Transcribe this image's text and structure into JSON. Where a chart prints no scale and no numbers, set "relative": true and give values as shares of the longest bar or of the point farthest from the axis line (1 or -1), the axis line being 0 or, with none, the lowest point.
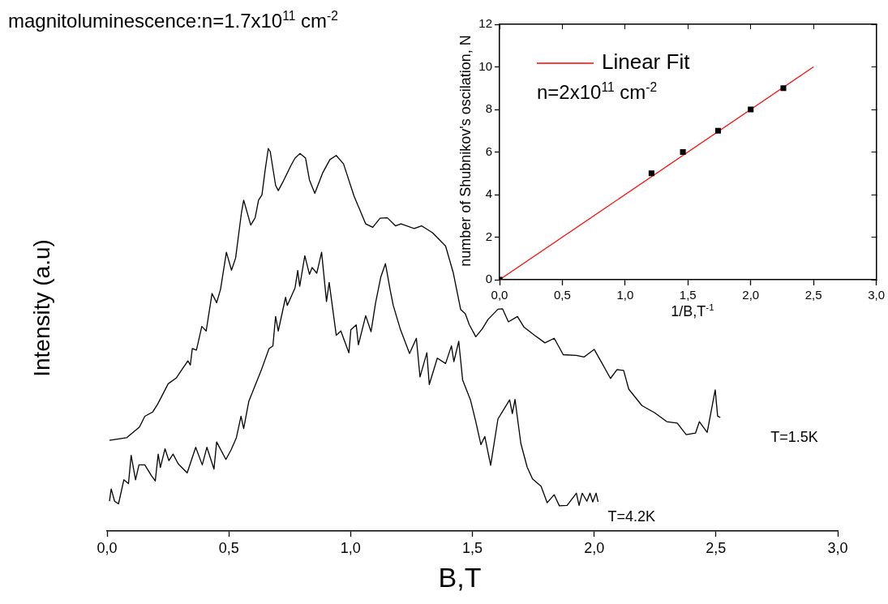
{
  "chart_data": [
    {
      "type": "line",
      "title": "magnitoluminescence:n=1.7x10$^{11}$ cm$^{-2}$",
      "xlabel": "B,T",
      "ylabel": "Intensity (a.u)",
      "relative": true,
      "grid": false,
      "marker": "none",
      "xlim": [
        0,
        3
      ],
      "xticks": [
        {
          "value": 0,
          "label": "0,0"
        },
        {
          "value": 0.5,
          "label": "0,5"
        },
        {
          "value": 1,
          "label": "1,0"
        },
        {
          "value": 1.5,
          "label": "1,5"
        },
        {
          "value": 2,
          "label": "2,0"
        },
        {
          "value": 2.5,
          "label": "2,5"
        },
        {
          "value": 3,
          "label": "3,0"
        }
      ],
      "series": [
        {
          "name": "T=1.5K",
          "color": "#000000",
          "x": [
            0.01,
            0.08,
            0.133,
            0.155,
            0.187,
            0.208,
            0.251,
            0.284,
            0.305,
            0.332,
            0.342,
            0.35,
            0.367,
            0.389,
            0.407,
            0.431,
            0.45,
            0.466,
            0.49,
            0.511,
            0.528,
            0.552,
            0.561,
            0.59,
            0.608,
            0.622,
            0.636,
            0.649,
            0.662,
            0.67,
            0.692,
            0.703,
            0.724,
            0.756,
            0.772,
            0.792,
            0.815,
            0.831,
            0.853,
            0.885,
            0.915,
            0.941,
            0.971,
            1.014,
            1.035,
            1.062,
            1.091,
            1.121,
            1.151,
            1.184,
            1.207,
            1.261,
            1.291,
            1.336,
            1.39,
            1.422,
            1.452,
            1.471,
            1.487,
            1.514,
            1.54,
            1.564,
            1.605,
            1.624,
            1.648,
            1.685,
            1.712,
            1.755,
            1.798,
            1.836,
            1.873,
            1.927,
            1.959,
            2.0,
            2.024,
            2.067,
            2.094,
            2.121,
            2.142,
            2.196,
            2.249,
            2.298,
            2.341,
            2.378,
            2.416,
            2.432,
            2.464,
            2.497,
            2.507,
            2.518
          ],
          "values": [
            0.237,
            0.244,
            0.272,
            0.3,
            0.311,
            0.332,
            0.385,
            0.4,
            0.42,
            0.445,
            0.434,
            0.477,
            0.473,
            0.535,
            0.523,
            0.621,
            0.597,
            0.632,
            0.729,
            0.682,
            0.714,
            0.833,
            0.865,
            0.8,
            0.819,
            0.865,
            0.879,
            0.943,
            1.0,
            0.992,
            0.904,
            0.89,
            0.915,
            0.957,
            0.975,
            0.987,
            0.975,
            0.918,
            0.883,
            0.936,
            0.971,
            0.982,
            0.96,
            0.876,
            0.844,
            0.803,
            0.794,
            0.818,
            0.819,
            0.798,
            0.803,
            0.791,
            0.798,
            0.78,
            0.745,
            0.674,
            0.579,
            0.568,
            0.54,
            0.508,
            0.528,
            0.553,
            0.58,
            0.581,
            0.547,
            0.561,
            0.533,
            0.512,
            0.492,
            0.504,
            0.461,
            0.459,
            0.455,
            0.475,
            0.448,
            0.399,
            0.422,
            0.42,
            0.371,
            0.328,
            0.309,
            0.286,
            0.282,
            0.252,
            0.256,
            0.286,
            0.258,
            0.369,
            0.3,
            0.297
          ]
        },
        {
          "name": "T=4.2K",
          "color": "#000000",
          "x": [
            0.01,
            0.017,
            0.031,
            0.047,
            0.069,
            0.088,
            0.099,
            0.117,
            0.131,
            0.155,
            0.182,
            0.198,
            0.21,
            0.219,
            0.238,
            0.254,
            0.271,
            0.292,
            0.329,
            0.364,
            0.391,
            0.41,
            0.439,
            0.45,
            0.488,
            0.509,
            0.531,
            0.55,
            0.561,
            0.582,
            0.604,
            0.633,
            0.665,
            0.681,
            0.692,
            0.703,
            0.733,
            0.74,
            0.772,
            0.783,
            0.791,
            0.812,
            0.831,
            0.842,
            0.861,
            0.881,
            0.901,
            0.912,
            0.941,
            0.96,
            0.993,
            1.001,
            1.023,
            1.032,
            1.062,
            1.084,
            1.102,
            1.124,
            1.143,
            1.162,
            1.175,
            1.205,
            1.242,
            1.27,
            1.285,
            1.313,
            1.323,
            1.356,
            1.39,
            1.414,
            1.424,
            1.444,
            1.46,
            1.492,
            1.514,
            1.535,
            1.551,
            1.575,
            1.605,
            1.653,
            1.664,
            1.675,
            1.699,
            1.725,
            1.747,
            1.782,
            1.807,
            1.836,
            1.857,
            1.889,
            1.927,
            1.938,
            1.951,
            1.97,
            1.983,
            1.994,
            2.008,
            2.016
          ],
          "values": [
            0.078,
            0.11,
            0.078,
            0.071,
            0.134,
            0.124,
            0.198,
            0.134,
            0.173,
            0.173,
            0.145,
            0.131,
            0.201,
            0.166,
            0.215,
            0.184,
            0.201,
            0.176,
            0.152,
            0.219,
            0.173,
            0.219,
            0.162,
            0.233,
            0.187,
            0.212,
            0.244,
            0.3,
            0.268,
            0.339,
            0.374,
            0.42,
            0.477,
            0.484,
            0.561,
            0.523,
            0.611,
            0.59,
            0.636,
            0.681,
            0.64,
            0.72,
            0.671,
            0.689,
            0.674,
            0.729,
            0.6,
            0.65,
            0.512,
            0.523,
            0.466,
            0.526,
            0.539,
            0.487,
            0.563,
            0.521,
            0.595,
            0.664,
            0.699,
            0.632,
            0.59,
            0.526,
            0.464,
            0.504,
            0.403,
            0.466,
            0.383,
            0.452,
            0.438,
            0.484,
            0.443,
            0.496,
            0.395,
            0.343,
            0.286,
            0.226,
            0.247,
            0.172,
            0.293,
            0.343,
            0.307,
            0.344,
            0.229,
            0.167,
            0.136,
            0.117,
            0.074,
            0.095,
            0.066,
            0.067,
            0.099,
            0.067,
            0.099,
            0.078,
            0.099,
            0.076,
            0.099,
            0.076
          ]
        }
      ]
    },
    {
      "type": "scatter",
      "xlabel": "1/B,T$^{-1}$",
      "ylabel": "number of Shubnikov's oscilation, N",
      "grid": false,
      "marker": "square",
      "legend": "top left",
      "annotations": [
        "n=2x10$^{11}$ cm$^{-2}$"
      ],
      "xlim": [
        0,
        3
      ],
      "xticks": [
        {
          "value": 0,
          "label": "0,0"
        },
        {
          "value": 0.5,
          "label": "0,5"
        },
        {
          "value": 1,
          "label": "1,0"
        },
        {
          "value": 1.5,
          "label": "1,5"
        },
        {
          "value": 2,
          "label": "2,0"
        },
        {
          "value": 2.5,
          "label": "2,5"
        },
        {
          "value": 3,
          "label": "3,0"
        }
      ],
      "ylim": [
        0,
        12
      ],
      "yticks": [
        0,
        2,
        4,
        6,
        8,
        10,
        12
      ],
      "series": [
        {
          "color": "#000000",
          "x": [
            0,
            1.21,
            1.46,
            1.74,
            2.0,
            2.26
          ],
          "values": [
            0,
            5,
            6,
            7,
            8,
            9
          ]
        },
        {
          "name": "Linear Fit",
          "type": "line",
          "marker": "none",
          "color": "#ff0000",
          "x": [
            0,
            2.5
          ],
          "values": [
            0,
            10
          ]
        }
      ]
    }
  ]
}
